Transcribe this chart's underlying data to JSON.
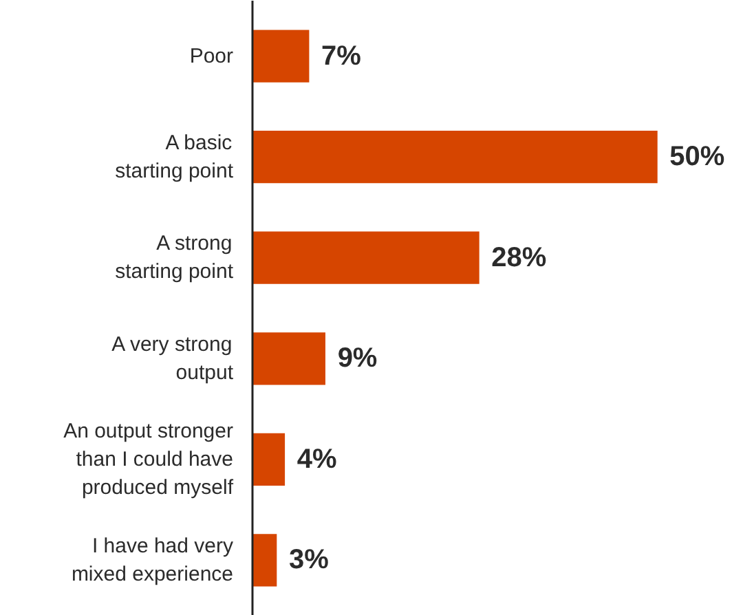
{
  "chart_data": {
    "type": "bar",
    "orientation": "horizontal",
    "categories": [
      "Poor",
      "A basic\nstarting point",
      "A strong\nstarting point",
      "A very strong\noutput",
      "An output stronger\nthan I could have\nproduced myself",
      "I have had very\nmixed experience"
    ],
    "values": [
      7,
      50,
      28,
      9,
      4,
      3
    ],
    "value_labels": [
      "7%",
      "50%",
      "28%",
      "9%",
      "4%",
      "3%"
    ],
    "color": "#d64500",
    "grid": false
  }
}
